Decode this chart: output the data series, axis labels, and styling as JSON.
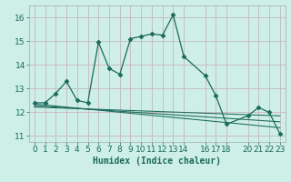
{
  "xlabel": "Humidex (Indice chaleur)",
  "bg_color": "#ceeee8",
  "grid_color": "#c8b8b8",
  "line_color": "#1a6b5a",
  "xlim": [
    -0.5,
    23.5
  ],
  "ylim": [
    10.75,
    16.5
  ],
  "yticks": [
    11,
    12,
    13,
    14,
    15,
    16
  ],
  "xticks": [
    0,
    1,
    2,
    3,
    4,
    5,
    6,
    7,
    8,
    9,
    10,
    11,
    12,
    13,
    14,
    16,
    17,
    18,
    20,
    21,
    22,
    23
  ],
  "main_x": [
    0,
    1,
    2,
    3,
    4,
    5,
    6,
    7,
    8,
    9,
    10,
    11,
    12,
    13,
    14,
    16,
    17,
    18,
    20,
    21,
    22,
    23
  ],
  "main_y": [
    12.4,
    12.4,
    12.8,
    13.3,
    12.5,
    12.4,
    14.95,
    13.85,
    13.6,
    15.1,
    15.2,
    15.3,
    15.25,
    16.1,
    14.35,
    13.55,
    12.7,
    11.5,
    11.85,
    12.2,
    12.0,
    11.1
  ],
  "line2_x": [
    0,
    23
  ],
  "line2_y": [
    12.35,
    11.35
  ],
  "line3_x": [
    0,
    23
  ],
  "line3_y": [
    12.28,
    11.6
  ],
  "line4_x": [
    0,
    23
  ],
  "line4_y": [
    12.22,
    11.85
  ],
  "marker_size": 2.5,
  "line_width": 0.9,
  "tick_fontsize": 6.5,
  "xlabel_fontsize": 7
}
